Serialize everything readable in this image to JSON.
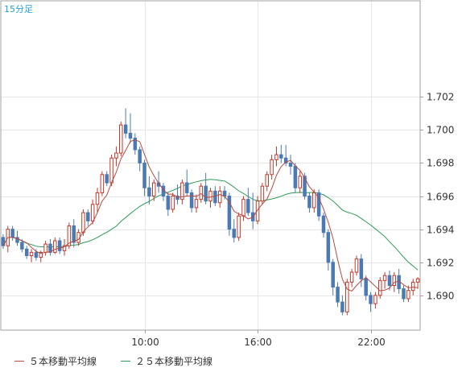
{
  "chart_data": {
    "type": "candlestick",
    "timeframe_label": "15分足",
    "y_tick_labels": [
      "1.702",
      "1.700",
      "1.698",
      "1.696",
      "1.694",
      "1.692",
      "1.690"
    ],
    "y_ticks": [
      1.702,
      1.7,
      1.698,
      1.696,
      1.694,
      1.692,
      1.69
    ],
    "ylim": [
      1.6879,
      1.7078
    ],
    "x_tick_labels": [
      "10:00",
      "16:00",
      "22:00"
    ],
    "x_tick_index": [
      30,
      54,
      78
    ],
    "grid": true,
    "colors": {
      "up": "#c0392b",
      "down": "#4a7ab5",
      "ma5": "#b4493f",
      "ma25": "#2f9a55",
      "grid": "#e6e6e6",
      "axis": "#a0a0a0",
      "label": "#1fa0d8"
    },
    "candles": [
      [
        1.6935,
        1.6937,
        1.6928,
        1.693
      ],
      [
        1.693,
        1.6942,
        1.6926,
        1.694
      ],
      [
        1.694,
        1.6942,
        1.6933,
        1.6935
      ],
      [
        1.6935,
        1.6939,
        1.693,
        1.6932
      ],
      [
        1.6932,
        1.6934,
        1.6926,
        1.6928
      ],
      [
        1.6928,
        1.693,
        1.6922,
        1.6924
      ],
      [
        1.6924,
        1.6928,
        1.692,
        1.6926
      ],
      [
        1.6926,
        1.6928,
        1.6921,
        1.6923
      ],
      [
        1.6923,
        1.6927,
        1.692,
        1.6926
      ],
      [
        1.6926,
        1.6933,
        1.6924,
        1.6931
      ],
      [
        1.6931,
        1.6934,
        1.6924,
        1.6926
      ],
      [
        1.6926,
        1.6935,
        1.6925,
        1.6933
      ],
      [
        1.6933,
        1.6935,
        1.6925,
        1.6927
      ],
      [
        1.6927,
        1.6934,
        1.6924,
        1.693
      ],
      [
        1.693,
        1.6944,
        1.6928,
        1.6942
      ],
      [
        1.6942,
        1.6946,
        1.6929,
        1.6932
      ],
      [
        1.6932,
        1.694,
        1.693,
        1.6938
      ],
      [
        1.6938,
        1.6952,
        1.6936,
        1.695
      ],
      [
        1.695,
        1.6952,
        1.6942,
        1.6945
      ],
      [
        1.6945,
        1.6958,
        1.6943,
        1.6955
      ],
      [
        1.6955,
        1.6965,
        1.695,
        1.6962
      ],
      [
        1.6962,
        1.6975,
        1.696,
        1.6973
      ],
      [
        1.6973,
        1.6975,
        1.6966,
        1.6968
      ],
      [
        1.6968,
        1.6985,
        1.6966,
        1.6983
      ],
      [
        1.6983,
        1.699,
        1.6978,
        1.6986
      ],
      [
        1.6986,
        1.7005,
        1.6984,
        1.7003
      ],
      [
        1.7003,
        1.7013,
        1.6995,
        1.6998
      ],
      [
        1.6998,
        1.701,
        1.6992,
        1.6995
      ],
      [
        1.6995,
        1.6998,
        1.6985,
        1.6988
      ],
      [
        1.6988,
        1.699,
        1.6975,
        1.698
      ],
      [
        1.698,
        1.6982,
        1.696,
        1.6965
      ],
      [
        1.6965,
        1.6972,
        1.6955,
        1.696
      ],
      [
        1.696,
        1.697,
        1.6957,
        1.6968
      ],
      [
        1.6968,
        1.6975,
        1.6962,
        1.6966
      ],
      [
        1.6966,
        1.6968,
        1.6957,
        1.696
      ],
      [
        1.696,
        1.6962,
        1.6948,
        1.6952
      ],
      [
        1.6952,
        1.6962,
        1.695,
        1.696
      ],
      [
        1.696,
        1.6967,
        1.6955,
        1.6958
      ],
      [
        1.6958,
        1.697,
        1.6955,
        1.6968
      ],
      [
        1.6968,
        1.6976,
        1.696,
        1.6962
      ],
      [
        1.6962,
        1.6964,
        1.695,
        1.6953
      ],
      [
        1.6953,
        1.6961,
        1.695,
        1.6958
      ],
      [
        1.6958,
        1.6968,
        1.6956,
        1.6966
      ],
      [
        1.6966,
        1.6974,
        1.6955,
        1.6957
      ],
      [
        1.6957,
        1.6965,
        1.6953,
        1.6963
      ],
      [
        1.6963,
        1.6966,
        1.6954,
        1.6956
      ],
      [
        1.6956,
        1.6966,
        1.6953,
        1.6963
      ],
      [
        1.6963,
        1.6966,
        1.6958,
        1.696
      ],
      [
        1.696,
        1.6962,
        1.6936,
        1.694
      ],
      [
        1.694,
        1.6946,
        1.6932,
        1.6935
      ],
      [
        1.6935,
        1.695,
        1.6933,
        1.6948
      ],
      [
        1.6948,
        1.696,
        1.6945,
        1.6958
      ],
      [
        1.6958,
        1.6965,
        1.6948,
        1.695
      ],
      [
        1.695,
        1.6962,
        1.694,
        1.6945
      ],
      [
        1.6945,
        1.696,
        1.6943,
        1.6957
      ],
      [
        1.6957,
        1.6968,
        1.6955,
        1.6966
      ],
      [
        1.6966,
        1.6975,
        1.6963,
        1.6973
      ],
      [
        1.6973,
        1.6985,
        1.697,
        1.6982
      ],
      [
        1.6982,
        1.699,
        1.6978,
        1.6985
      ],
      [
        1.6985,
        1.6991,
        1.698,
        1.6983
      ],
      [
        1.6983,
        1.6991,
        1.6978,
        1.698
      ],
      [
        1.698,
        1.6985,
        1.6973,
        1.6978
      ],
      [
        1.6978,
        1.698,
        1.6962,
        1.6965
      ],
      [
        1.6965,
        1.6975,
        1.6962,
        1.6972
      ],
      [
        1.6972,
        1.6974,
        1.6958,
        1.696
      ],
      [
        1.696,
        1.6962,
        1.695,
        1.6953
      ],
      [
        1.6953,
        1.6964,
        1.695,
        1.6962
      ],
      [
        1.6962,
        1.6964,
        1.6945,
        1.6948
      ],
      [
        1.6948,
        1.695,
        1.6935,
        1.6938
      ],
      [
        1.6938,
        1.694,
        1.6915,
        1.692
      ],
      [
        1.692,
        1.6922,
        1.69,
        1.6905
      ],
      [
        1.6905,
        1.6908,
        1.6893,
        1.6896
      ],
      [
        1.6896,
        1.69,
        1.6888,
        1.689
      ],
      [
        1.689,
        1.691,
        1.6888,
        1.6908
      ],
      [
        1.6908,
        1.6916,
        1.6905,
        1.6914
      ],
      [
        1.6914,
        1.6924,
        1.6912,
        1.6922
      ],
      [
        1.6922,
        1.6925,
        1.6905,
        1.691
      ],
      [
        1.691,
        1.6912,
        1.6897,
        1.69
      ],
      [
        1.69,
        1.6902,
        1.689,
        1.6895
      ],
      [
        1.6895,
        1.6902,
        1.6892,
        1.69
      ],
      [
        1.69,
        1.6911,
        1.6898,
        1.6909
      ],
      [
        1.6909,
        1.6914,
        1.6904,
        1.6912
      ],
      [
        1.6912,
        1.6915,
        1.6903,
        1.6906
      ],
      [
        1.6906,
        1.6914,
        1.6902,
        1.6912
      ],
      [
        1.6912,
        1.6916,
        1.6901,
        1.6904
      ],
      [
        1.6904,
        1.6906,
        1.6896,
        1.6898
      ],
      [
        1.6898,
        1.6906,
        1.6896,
        1.6903
      ],
      [
        1.6903,
        1.691,
        1.69,
        1.6908
      ],
      [
        1.6908,
        1.6911,
        1.6904,
        1.691
      ]
    ]
  },
  "legend": {
    "ma5_label": "５本移動平均線",
    "ma25_label": "２５本移動平均線"
  }
}
